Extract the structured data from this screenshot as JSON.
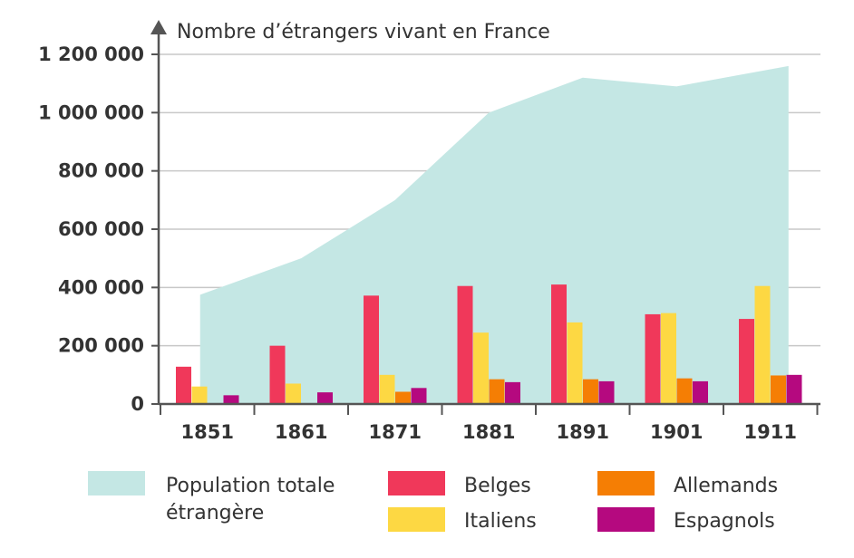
{
  "chart_data": {
    "type": "bar",
    "ylabel": "Nombre d’étrangers vivant en France",
    "categories": [
      "1851",
      "1861",
      "1871",
      "1881",
      "1891",
      "1901",
      "1911"
    ],
    "ylim": [
      0,
      1200000
    ],
    "yticks": [
      0,
      200000,
      400000,
      600000,
      800000,
      1000000,
      1200000
    ],
    "ytick_labels": [
      "0",
      "200 000",
      "400 000",
      "600 000",
      "800 000",
      "1 000 000",
      "1 200 000"
    ],
    "grid": true,
    "legend_position": "bottom",
    "area": {
      "name_lines": [
        "Population totale",
        "étrangère"
      ],
      "color": "#c4e7e4",
      "values": [
        375000,
        500000,
        700000,
        1000000,
        1120000,
        1090000,
        1160000
      ]
    },
    "series": [
      {
        "name": "Belges",
        "color": "#f0385a",
        "values": [
          128000,
          200000,
          372000,
          405000,
          410000,
          308000,
          292000
        ]
      },
      {
        "name": "Italiens",
        "color": "#fdd843",
        "values": [
          60000,
          70000,
          100000,
          245000,
          280000,
          312000,
          405000
        ]
      },
      {
        "name": "Allemands",
        "color": "#f57e04",
        "values": [
          0,
          0,
          42000,
          85000,
          85000,
          88000,
          98000
        ]
      },
      {
        "name": "Espagnols",
        "color": "#b5097f",
        "values": [
          30000,
          40000,
          55000,
          75000,
          78000,
          78000,
          100000
        ]
      }
    ]
  }
}
